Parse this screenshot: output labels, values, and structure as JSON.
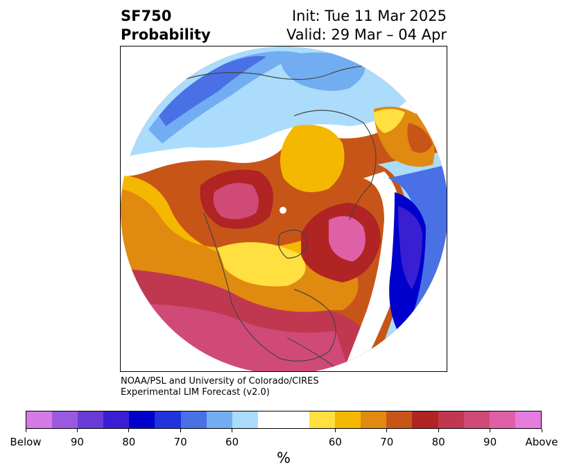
{
  "header": {
    "left_line1": "SF750",
    "left_line2": "Probability",
    "right_line1": "Init: Tue 11 Mar 2025",
    "right_line2": "Valid: 29 Mar – 04 Apr"
  },
  "credit": {
    "line1": "NOAA/PSL and University of Colorado/CIRES",
    "line2": "Experimental LIM Forecast (v2.0)"
  },
  "colorbar": {
    "unit": "%",
    "colors": [
      "#d67be6",
      "#9b59e0",
      "#6a3bd8",
      "#3a1fd2",
      "#0000cc",
      "#2233dd",
      "#4a70e6",
      "#72adf2",
      "#abdcfc",
      "#ffffff",
      "#ffffff",
      "#ffe040",
      "#f5b800",
      "#e08a10",
      "#c85518",
      "#b02424",
      "#c03850",
      "#d04a78",
      "#e060a8",
      "#e67bdf"
    ],
    "ticks": [
      {
        "label": "Below"
      },
      {
        "label": "90"
      },
      {
        "label": "80"
      },
      {
        "label": "70"
      },
      {
        "label": "60"
      },
      {
        "label": "60"
      },
      {
        "label": "70"
      },
      {
        "label": "80"
      },
      {
        "label": "90"
      },
      {
        "label": "Above"
      }
    ]
  },
  "map": {
    "projection": "north-polar-stereographic",
    "blank_band_color": "#ffffff",
    "background": "#ffffff",
    "coastline_color": "#444444"
  }
}
